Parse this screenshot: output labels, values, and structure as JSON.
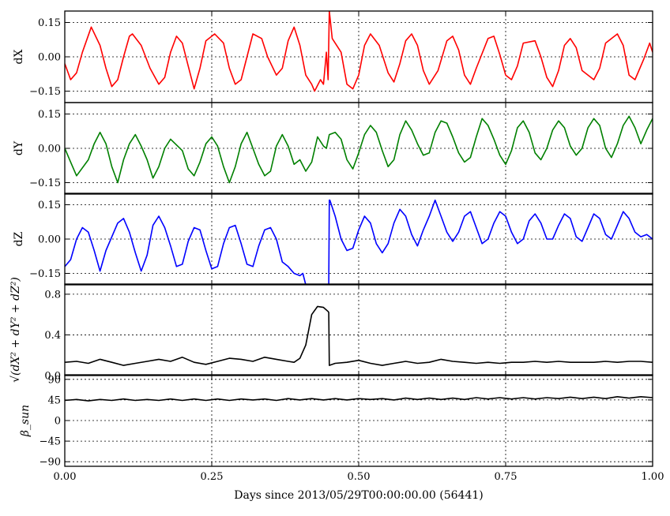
{
  "chart_data": {
    "type": "line",
    "xlabel": "Days since 2013/05/29T00:00:00.00 (56441)",
    "xlim": [
      0.0,
      1.0
    ],
    "xticks": [
      0.0,
      0.25,
      0.5,
      0.75,
      1.0
    ],
    "xtick_labels": [
      "0.00",
      "0.25",
      "0.50",
      "0.75",
      "1.00"
    ],
    "grid": true,
    "panels": [
      {
        "id": "dx",
        "ylabel": "dX",
        "ylabel_math": false,
        "color": "#ff0000",
        "ylim": [
          -0.2,
          0.2
        ],
        "yticks": [
          -0.15,
          0.0,
          0.15
        ],
        "ytick_labels": [
          "−0.15",
          "0.00",
          "0.15"
        ],
        "series": [
          {
            "name": "",
            "x": [
              0.0,
              0.01,
              0.02,
              0.03,
              0.045,
              0.06,
              0.07,
              0.08,
              0.09,
              0.1,
              0.11,
              0.115,
              0.13,
              0.145,
              0.16,
              0.17,
              0.18,
              0.19,
              0.2,
              0.21,
              0.22,
              0.23,
              0.24,
              0.255,
              0.27,
              0.28,
              0.29,
              0.3,
              0.31,
              0.32,
              0.335,
              0.345,
              0.36,
              0.37,
              0.38,
              0.39,
              0.4,
              0.41,
              0.42,
              0.425,
              0.435,
              0.44,
              0.445,
              0.448,
              0.45,
              0.455,
              0.46,
              0.47,
              0.48,
              0.49,
              0.5,
              0.51,
              0.52,
              0.535,
              0.55,
              0.56,
              0.57,
              0.58,
              0.59,
              0.6,
              0.61,
              0.62,
              0.635,
              0.65,
              0.66,
              0.67,
              0.68,
              0.69,
              0.7,
              0.72,
              0.73,
              0.74,
              0.75,
              0.76,
              0.77,
              0.78,
              0.8,
              0.81,
              0.82,
              0.83,
              0.84,
              0.85,
              0.86,
              0.87,
              0.88,
              0.9,
              0.91,
              0.92,
              0.94,
              0.95,
              0.96,
              0.97,
              0.985,
              0.995,
              1.0
            ],
            "y": [
              -0.03,
              -0.1,
              -0.07,
              0.02,
              0.13,
              0.05,
              -0.05,
              -0.13,
              -0.1,
              0.0,
              0.09,
              0.1,
              0.05,
              -0.05,
              -0.12,
              -0.09,
              0.02,
              0.09,
              0.06,
              -0.04,
              -0.14,
              -0.05,
              0.07,
              0.1,
              0.06,
              -0.05,
              -0.12,
              -0.1,
              0.0,
              0.1,
              0.08,
              0.0,
              -0.08,
              -0.05,
              0.07,
              0.13,
              0.05,
              -0.08,
              -0.12,
              -0.15,
              -0.1,
              -0.12,
              0.02,
              -0.1,
              0.2,
              0.08,
              0.06,
              0.02,
              -0.12,
              -0.14,
              -0.08,
              0.05,
              0.1,
              0.05,
              -0.07,
              -0.11,
              -0.03,
              0.07,
              0.1,
              0.05,
              -0.06,
              -0.12,
              -0.06,
              0.07,
              0.09,
              0.03,
              -0.08,
              -0.12,
              -0.05,
              0.08,
              0.09,
              0.01,
              -0.08,
              -0.1,
              -0.04,
              0.06,
              0.07,
              0.0,
              -0.09,
              -0.13,
              -0.06,
              0.05,
              0.08,
              0.04,
              -0.06,
              -0.1,
              -0.05,
              0.06,
              0.1,
              0.05,
              -0.08,
              -0.1,
              -0.01,
              0.06,
              0.02
            ]
          }
        ]
      },
      {
        "id": "dy",
        "ylabel": "dY",
        "ylabel_math": false,
        "color": "#008000",
        "ylim": [
          -0.2,
          0.2
        ],
        "yticks": [
          -0.15,
          0.0,
          0.15
        ],
        "ytick_labels": [
          "−0.15",
          "0.00",
          "0.15"
        ],
        "series": [
          {
            "name": "",
            "x": [
              0.0,
              0.01,
              0.02,
              0.04,
              0.05,
              0.06,
              0.07,
              0.08,
              0.09,
              0.1,
              0.11,
              0.12,
              0.13,
              0.14,
              0.15,
              0.16,
              0.17,
              0.18,
              0.2,
              0.21,
              0.22,
              0.23,
              0.24,
              0.25,
              0.26,
              0.27,
              0.28,
              0.29,
              0.3,
              0.31,
              0.32,
              0.33,
              0.34,
              0.35,
              0.36,
              0.37,
              0.38,
              0.39,
              0.4,
              0.41,
              0.42,
              0.43,
              0.44,
              0.445,
              0.45,
              0.46,
              0.47,
              0.48,
              0.49,
              0.5,
              0.51,
              0.52,
              0.53,
              0.54,
              0.55,
              0.56,
              0.57,
              0.58,
              0.59,
              0.6,
              0.61,
              0.62,
              0.63,
              0.64,
              0.65,
              0.66,
              0.67,
              0.68,
              0.69,
              0.7,
              0.71,
              0.72,
              0.73,
              0.74,
              0.75,
              0.76,
              0.77,
              0.78,
              0.79,
              0.8,
              0.81,
              0.82,
              0.83,
              0.84,
              0.85,
              0.86,
              0.87,
              0.88,
              0.89,
              0.9,
              0.91,
              0.92,
              0.93,
              0.94,
              0.95,
              0.96,
              0.97,
              0.98,
              0.99,
              1.0
            ],
            "y": [
              0.0,
              -0.06,
              -0.12,
              -0.05,
              0.02,
              0.07,
              0.02,
              -0.08,
              -0.15,
              -0.05,
              0.02,
              0.06,
              0.01,
              -0.05,
              -0.13,
              -0.08,
              0.0,
              0.04,
              -0.01,
              -0.09,
              -0.12,
              -0.06,
              0.02,
              0.05,
              0.01,
              -0.08,
              -0.15,
              -0.08,
              0.02,
              0.07,
              0.0,
              -0.07,
              -0.12,
              -0.1,
              0.01,
              0.06,
              0.01,
              -0.07,
              -0.05,
              -0.1,
              -0.06,
              0.05,
              0.01,
              0.0,
              0.06,
              0.07,
              0.04,
              -0.05,
              -0.09,
              -0.02,
              0.06,
              0.1,
              0.07,
              -0.01,
              -0.08,
              -0.05,
              0.06,
              0.12,
              0.08,
              0.02,
              -0.03,
              -0.02,
              0.07,
              0.12,
              0.11,
              0.05,
              -0.02,
              -0.06,
              -0.04,
              0.05,
              0.13,
              0.1,
              0.04,
              -0.03,
              -0.07,
              -0.01,
              0.09,
              0.12,
              0.07,
              -0.02,
              -0.05,
              0.0,
              0.08,
              0.12,
              0.09,
              0.01,
              -0.03,
              0.0,
              0.09,
              0.13,
              0.1,
              0.0,
              -0.04,
              0.02,
              0.1,
              0.14,
              0.09,
              0.02,
              0.08,
              0.13
            ]
          }
        ]
      },
      {
        "id": "dz",
        "ylabel": "dZ",
        "ylabel_math": false,
        "color": "#0000ff",
        "ylim": [
          -0.2,
          0.2
        ],
        "yticks": [
          -0.15,
          0.0,
          0.15
        ],
        "ytick_labels": [
          "−0.15",
          "0.00",
          "0.15"
        ],
        "series": [
          {
            "name": "",
            "x": [
              0.0,
              0.01,
              0.02,
              0.03,
              0.04,
              0.05,
              0.06,
              0.07,
              0.09,
              0.1,
              0.11,
              0.12,
              0.13,
              0.14,
              0.15,
              0.16,
              0.17,
              0.18,
              0.19,
              0.2,
              0.21,
              0.22,
              0.23,
              0.24,
              0.25,
              0.26,
              0.27,
              0.28,
              0.29,
              0.3,
              0.31,
              0.32,
              0.33,
              0.34,
              0.35,
              0.36,
              0.37,
              0.38,
              0.39,
              0.4,
              0.405,
              0.41,
              0.412,
              0.449,
              0.45,
              0.451,
              0.46,
              0.47,
              0.48,
              0.49,
              0.5,
              0.51,
              0.52,
              0.53,
              0.54,
              0.55,
              0.56,
              0.57,
              0.58,
              0.59,
              0.6,
              0.61,
              0.62,
              0.63,
              0.64,
              0.65,
              0.66,
              0.67,
              0.68,
              0.69,
              0.7,
              0.71,
              0.72,
              0.73,
              0.74,
              0.75,
              0.76,
              0.77,
              0.78,
              0.79,
              0.8,
              0.81,
              0.82,
              0.83,
              0.84,
              0.85,
              0.86,
              0.87,
              0.88,
              0.89,
              0.9,
              0.91,
              0.92,
              0.93,
              0.94,
              0.95,
              0.96,
              0.97,
              0.98,
              0.99,
              1.0
            ],
            "y": [
              -0.12,
              -0.09,
              0.0,
              0.05,
              0.03,
              -0.05,
              -0.14,
              -0.05,
              0.07,
              0.09,
              0.03,
              -0.06,
              -0.14,
              -0.07,
              0.06,
              0.1,
              0.05,
              -0.03,
              -0.12,
              -0.11,
              -0.01,
              0.05,
              0.04,
              -0.05,
              -0.13,
              -0.12,
              -0.02,
              0.05,
              0.06,
              -0.02,
              -0.11,
              -0.12,
              -0.03,
              0.04,
              0.05,
              0.0,
              -0.1,
              -0.12,
              -0.15,
              -0.16,
              -0.15,
              -0.2,
              -0.2,
              -0.2,
              0.17,
              0.17,
              0.1,
              0.0,
              -0.05,
              -0.04,
              0.04,
              0.1,
              0.07,
              -0.02,
              -0.06,
              -0.02,
              0.07,
              0.13,
              0.1,
              0.02,
              -0.03,
              0.04,
              0.1,
              0.17,
              0.1,
              0.03,
              -0.01,
              0.03,
              0.1,
              0.12,
              0.05,
              -0.02,
              0.0,
              0.07,
              0.12,
              0.1,
              0.03,
              -0.02,
              0.0,
              0.08,
              0.11,
              0.07,
              0.0,
              0.0,
              0.06,
              0.11,
              0.09,
              0.01,
              -0.01,
              0.05,
              0.11,
              0.09,
              0.02,
              0.0,
              0.06,
              0.12,
              0.09,
              0.03,
              0.01,
              0.02,
              0.0
            ]
          }
        ]
      },
      {
        "id": "dr",
        "ylabel": "√(dX² + dY² + dZ²)",
        "ylabel_math": true,
        "color": "#000000",
        "ylim": [
          0.0,
          0.9
        ],
        "yticks": [
          0.0,
          0.4,
          0.8
        ],
        "ytick_labels": [
          "0.0",
          "0.4",
          "0.8"
        ],
        "series": [
          {
            "name": "",
            "x": [
              0.0,
              0.02,
              0.04,
              0.06,
              0.08,
              0.1,
              0.12,
              0.14,
              0.16,
              0.18,
              0.2,
              0.22,
              0.24,
              0.26,
              0.28,
              0.3,
              0.32,
              0.34,
              0.36,
              0.38,
              0.39,
              0.4,
              0.41,
              0.42,
              0.43,
              0.44,
              0.448,
              0.449,
              0.45,
              0.46,
              0.48,
              0.5,
              0.52,
              0.54,
              0.56,
              0.58,
              0.6,
              0.62,
              0.64,
              0.66,
              0.68,
              0.7,
              0.72,
              0.74,
              0.76,
              0.78,
              0.8,
              0.82,
              0.84,
              0.86,
              0.88,
              0.9,
              0.92,
              0.94,
              0.96,
              0.98,
              1.0
            ],
            "y": [
              0.13,
              0.14,
              0.12,
              0.16,
              0.13,
              0.1,
              0.12,
              0.14,
              0.16,
              0.14,
              0.18,
              0.13,
              0.11,
              0.14,
              0.17,
              0.16,
              0.14,
              0.18,
              0.16,
              0.14,
              0.13,
              0.17,
              0.3,
              0.6,
              0.68,
              0.67,
              0.63,
              0.62,
              0.1,
              0.12,
              0.13,
              0.15,
              0.12,
              0.1,
              0.12,
              0.14,
              0.12,
              0.13,
              0.16,
              0.14,
              0.13,
              0.12,
              0.13,
              0.12,
              0.13,
              0.13,
              0.14,
              0.13,
              0.14,
              0.13,
              0.13,
              0.13,
              0.14,
              0.13,
              0.14,
              0.14,
              0.13
            ]
          }
        ]
      },
      {
        "id": "beta",
        "ylabel": "β_sun",
        "ylabel_math": true,
        "color": "#000000",
        "ylim": [
          -100,
          100
        ],
        "yticks": [
          -90,
          -45,
          0,
          45,
          90
        ],
        "ytick_labels": [
          "−90",
          "−45",
          "0",
          "45",
          "90"
        ],
        "series": [
          {
            "name": "",
            "x": [
              0.0,
              0.02,
              0.04,
              0.06,
              0.08,
              0.1,
              0.12,
              0.14,
              0.16,
              0.18,
              0.2,
              0.22,
              0.24,
              0.26,
              0.28,
              0.3,
              0.32,
              0.34,
              0.36,
              0.38,
              0.4,
              0.42,
              0.44,
              0.46,
              0.48,
              0.5,
              0.52,
              0.54,
              0.56,
              0.58,
              0.6,
              0.62,
              0.64,
              0.66,
              0.68,
              0.7,
              0.72,
              0.74,
              0.76,
              0.78,
              0.8,
              0.82,
              0.84,
              0.86,
              0.88,
              0.9,
              0.92,
              0.94,
              0.96,
              0.98,
              1.0
            ],
            "y": [
              44,
              46,
              43,
              46,
              44,
              47,
              44,
              46,
              44,
              47,
              44,
              47,
              44,
              47,
              44,
              47,
              45,
              47,
              44,
              48,
              45,
              48,
              45,
              48,
              45,
              48,
              46,
              48,
              45,
              49,
              46,
              49,
              46,
              49,
              46,
              50,
              47,
              50,
              47,
              50,
              47,
              50,
              48,
              51,
              48,
              51,
              48,
              52,
              49,
              52,
              50
            ]
          }
        ]
      }
    ]
  }
}
